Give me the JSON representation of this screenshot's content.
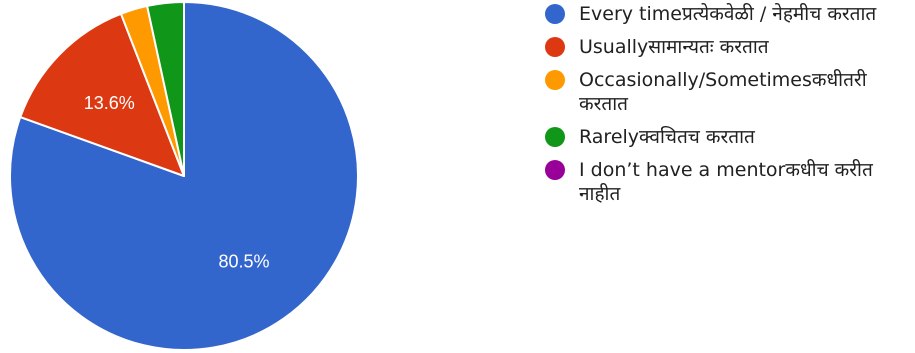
{
  "chart_data": {
    "type": "pie",
    "title": "",
    "categories": [
      "Every timeप्रत्येकवेळी / नेहमीच करतात",
      "Usuallyसामान्यतः करतात",
      "Occasionally/Sometimesकधीतरी करतात",
      "Rarelyक्वचितच करतात",
      "I don’t have a mentorकधीच करीत नाहीत"
    ],
    "values": [
      80.5,
      13.6,
      2.5,
      3.4,
      0
    ],
    "data_labels": [
      "80.5%",
      "13.6%",
      "",
      "",
      ""
    ],
    "colors": [
      "#3366cc",
      "#dc3912",
      "#ff9900",
      "#109618",
      "#990099"
    ],
    "legend_position": "right"
  }
}
